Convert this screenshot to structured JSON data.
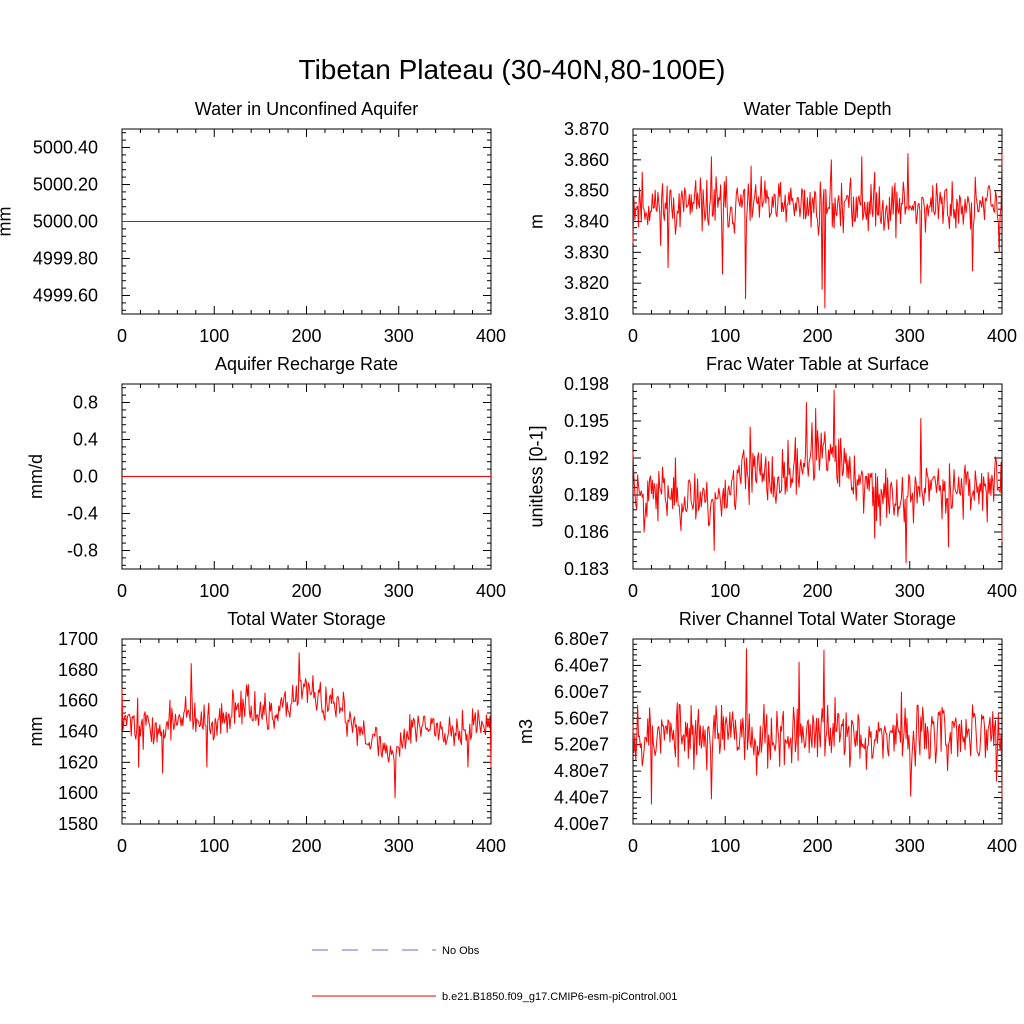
{
  "figure": {
    "title": "Tibetan Plateau (30-40N,80-100E)"
  },
  "colors": {
    "series": "#ff0000",
    "obs": "#6b6bd6",
    "axis": "#000000"
  },
  "legend": {
    "items": [
      {
        "label": "No Obs",
        "style": "dashed",
        "color": "#6b6bd6"
      },
      {
        "label": "b.e21.B1850.f09_g17.CMIP6-esm-piControl.001",
        "style": "solid",
        "color": "#ff0000"
      }
    ]
  },
  "chart_data": [
    {
      "type": "line",
      "title": "Water in Unconfined Aquifer",
      "xlabel": "",
      "ylabel": "mm",
      "xlim": [
        0,
        400
      ],
      "ylim": [
        4999.5,
        5000.5
      ],
      "xticks": [
        0,
        100,
        200,
        300,
        400
      ],
      "xtick_labels": [
        "0",
        "100",
        "200",
        "300",
        "400"
      ],
      "yticks": [
        4999.6,
        4999.8,
        5000.0,
        5000.2,
        5000.4
      ],
      "ytick_labels": [
        "4999.60",
        "4999.80",
        "5000.00",
        "5000.20",
        "5000.40"
      ],
      "series": [
        {
          "name": "b.e21.B1850.f09_g17.CMIP6-esm-piControl.001",
          "mode": "constant",
          "value": 5000.0,
          "x_start": 0,
          "x_end": 400
        }
      ]
    },
    {
      "type": "line",
      "title": "Water Table Depth",
      "xlabel": "",
      "ylabel": "m",
      "xlim": [
        0,
        400
      ],
      "ylim": [
        3.81,
        3.87
      ],
      "xticks": [
        0,
        100,
        200,
        300,
        400
      ],
      "xtick_labels": [
        "0",
        "100",
        "200",
        "300",
        "400"
      ],
      "yticks": [
        3.81,
        3.82,
        3.83,
        3.84,
        3.85,
        3.86,
        3.87
      ],
      "ytick_labels": [
        "3.810",
        "3.820",
        "3.830",
        "3.840",
        "3.850",
        "3.860",
        "3.870"
      ],
      "series": [
        {
          "name": "b.e21.B1850.f09_g17.CMIP6-esm-piControl.001",
          "mode": "noise",
          "seed": 11,
          "mean": 3.845,
          "std": 0.006,
          "x_start": 0,
          "x_end": 400,
          "anchors": [
            [
              0,
              3.833
            ],
            [
              5,
              3.845
            ],
            [
              10,
              3.856
            ],
            [
              38,
              3.825
            ],
            [
              85,
              3.861
            ],
            [
              97,
              3.823
            ],
            [
              122,
              3.815
            ],
            [
              128,
              3.858
            ],
            [
              205,
              3.818
            ],
            [
              208,
              3.812
            ],
            [
              215,
              3.86
            ],
            [
              248,
              3.861
            ],
            [
              298,
              3.862
            ],
            [
              312,
              3.82
            ],
            [
              368,
              3.824
            ],
            [
              397,
              3.83
            ],
            [
              400,
              3.862
            ]
          ]
        }
      ]
    },
    {
      "type": "line",
      "title": "Aquifer Recharge Rate",
      "xlabel": "",
      "ylabel": "mm/d",
      "xlim": [
        0,
        400
      ],
      "ylim": [
        -1.0,
        1.0
      ],
      "xticks": [
        0,
        100,
        200,
        300,
        400
      ],
      "xtick_labels": [
        "0",
        "100",
        "200",
        "300",
        "400"
      ],
      "yticks": [
        -0.8,
        -0.4,
        0.0,
        0.4,
        0.8
      ],
      "ytick_labels": [
        "-0.8",
        "-0.4",
        "0.0",
        "0.4",
        "0.8"
      ],
      "series": [
        {
          "name": "b.e21.B1850.f09_g17.CMIP6-esm-piControl.001",
          "mode": "constant",
          "value": 0.0,
          "x_start": 0,
          "x_end": 400
        }
      ]
    },
    {
      "type": "line",
      "title": "Frac Water Table at Surface",
      "xlabel": "",
      "ylabel": "unitless [0-1]",
      "xlim": [
        0,
        400
      ],
      "ylim": [
        0.183,
        0.198
      ],
      "xticks": [
        0,
        100,
        200,
        300,
        400
      ],
      "xtick_labels": [
        "0",
        "100",
        "200",
        "300",
        "400"
      ],
      "yticks": [
        0.183,
        0.186,
        0.189,
        0.192,
        0.195,
        0.198
      ],
      "ytick_labels": [
        "0.183",
        "0.186",
        "0.189",
        "0.192",
        "0.195",
        "0.198"
      ],
      "series": [
        {
          "name": "b.e21.B1850.f09_g17.CMIP6-esm-piControl.001",
          "mode": "noise",
          "seed": 23,
          "mean": 0.1895,
          "std": 0.0016,
          "trend": [
            [
              0,
              0.1895
            ],
            [
              90,
              0.1885
            ],
            [
              130,
              0.1915
            ],
            [
              150,
              0.1895
            ],
            [
              200,
              0.1925
            ],
            [
              230,
              0.191
            ],
            [
              280,
              0.1885
            ],
            [
              330,
              0.1898
            ],
            [
              400,
              0.1895
            ]
          ],
          "x_start": 0,
          "x_end": 400,
          "anchors": [
            [
              0,
              0.1925
            ],
            [
              12,
              0.186
            ],
            [
              88,
              0.1845
            ],
            [
              127,
              0.1945
            ],
            [
              188,
              0.1965
            ],
            [
              198,
              0.196
            ],
            [
              218,
              0.1975
            ],
            [
              262,
              0.1855
            ],
            [
              296,
              0.1835
            ],
            [
              312,
              0.1952
            ],
            [
              342,
              0.1848
            ],
            [
              400,
              0.1852
            ]
          ]
        }
      ]
    },
    {
      "type": "line",
      "title": "Total Water Storage",
      "xlabel": "",
      "ylabel": "mm",
      "xlim": [
        0,
        400
      ],
      "ylim": [
        1580,
        1700
      ],
      "xticks": [
        0,
        100,
        200,
        300,
        400
      ],
      "xtick_labels": [
        "0",
        "100",
        "200",
        "300",
        "400"
      ],
      "yticks": [
        1580,
        1600,
        1620,
        1640,
        1660,
        1680,
        1700
      ],
      "ytick_labels": [
        "1580",
        "1600",
        "1620",
        "1640",
        "1660",
        "1680",
        "1700"
      ],
      "series": [
        {
          "name": "b.e21.B1850.f09_g17.CMIP6-esm-piControl.001",
          "mode": "noise",
          "seed": 37,
          "mean": 1645,
          "std": 9,
          "trend": [
            [
              0,
              1650
            ],
            [
              40,
              1640
            ],
            [
              70,
              1652
            ],
            [
              100,
              1640
            ],
            [
              130,
              1662
            ],
            [
              160,
              1645
            ],
            [
              195,
              1668
            ],
            [
              230,
              1655
            ],
            [
              260,
              1642
            ],
            [
              290,
              1625
            ],
            [
              320,
              1645
            ],
            [
              360,
              1642
            ],
            [
              400,
              1645
            ]
          ],
          "x_start": 0,
          "x_end": 400,
          "anchors": [
            [
              0,
              1668
            ],
            [
              18,
              1617
            ],
            [
              44,
              1613
            ],
            [
              75,
              1684
            ],
            [
              92,
              1617
            ],
            [
              192,
              1691
            ],
            [
              296,
              1597
            ],
            [
              375,
              1617
            ],
            [
              400,
              1617
            ]
          ]
        }
      ]
    },
    {
      "type": "line",
      "title": "River Channel Total Water Storage",
      "xlabel": "",
      "ylabel": "m3",
      "xlim": [
        0,
        400
      ],
      "ylim": [
        40000000,
        68000000
      ],
      "xticks": [
        0,
        100,
        200,
        300,
        400
      ],
      "xtick_labels": [
        "0",
        "100",
        "200",
        "300",
        "400"
      ],
      "yticks": [
        40000000,
        44000000,
        48000000,
        52000000,
        56000000,
        60000000,
        64000000,
        68000000
      ],
      "ytick_labels": [
        "4.00e7",
        "4.40e7",
        "4.80e7",
        "5.20e7",
        "5.60e7",
        "6.00e7",
        "6.40e7",
        "6.80e7"
      ],
      "series": [
        {
          "name": "b.e21.B1850.f09_g17.CMIP6-esm-piControl.001",
          "mode": "noise",
          "seed": 53,
          "mean": 53500000,
          "std": 3400000,
          "x_start": 0,
          "x_end": 400,
          "anchors": [
            [
              0,
              55000000
            ],
            [
              5,
              58000000
            ],
            [
              20,
              43000000
            ],
            [
              85,
              43800000
            ],
            [
              123,
              66500000
            ],
            [
              180,
              64500000
            ],
            [
              207,
              66300000
            ],
            [
              301,
              44200000
            ],
            [
              400,
              44000000
            ]
          ]
        }
      ]
    }
  ]
}
